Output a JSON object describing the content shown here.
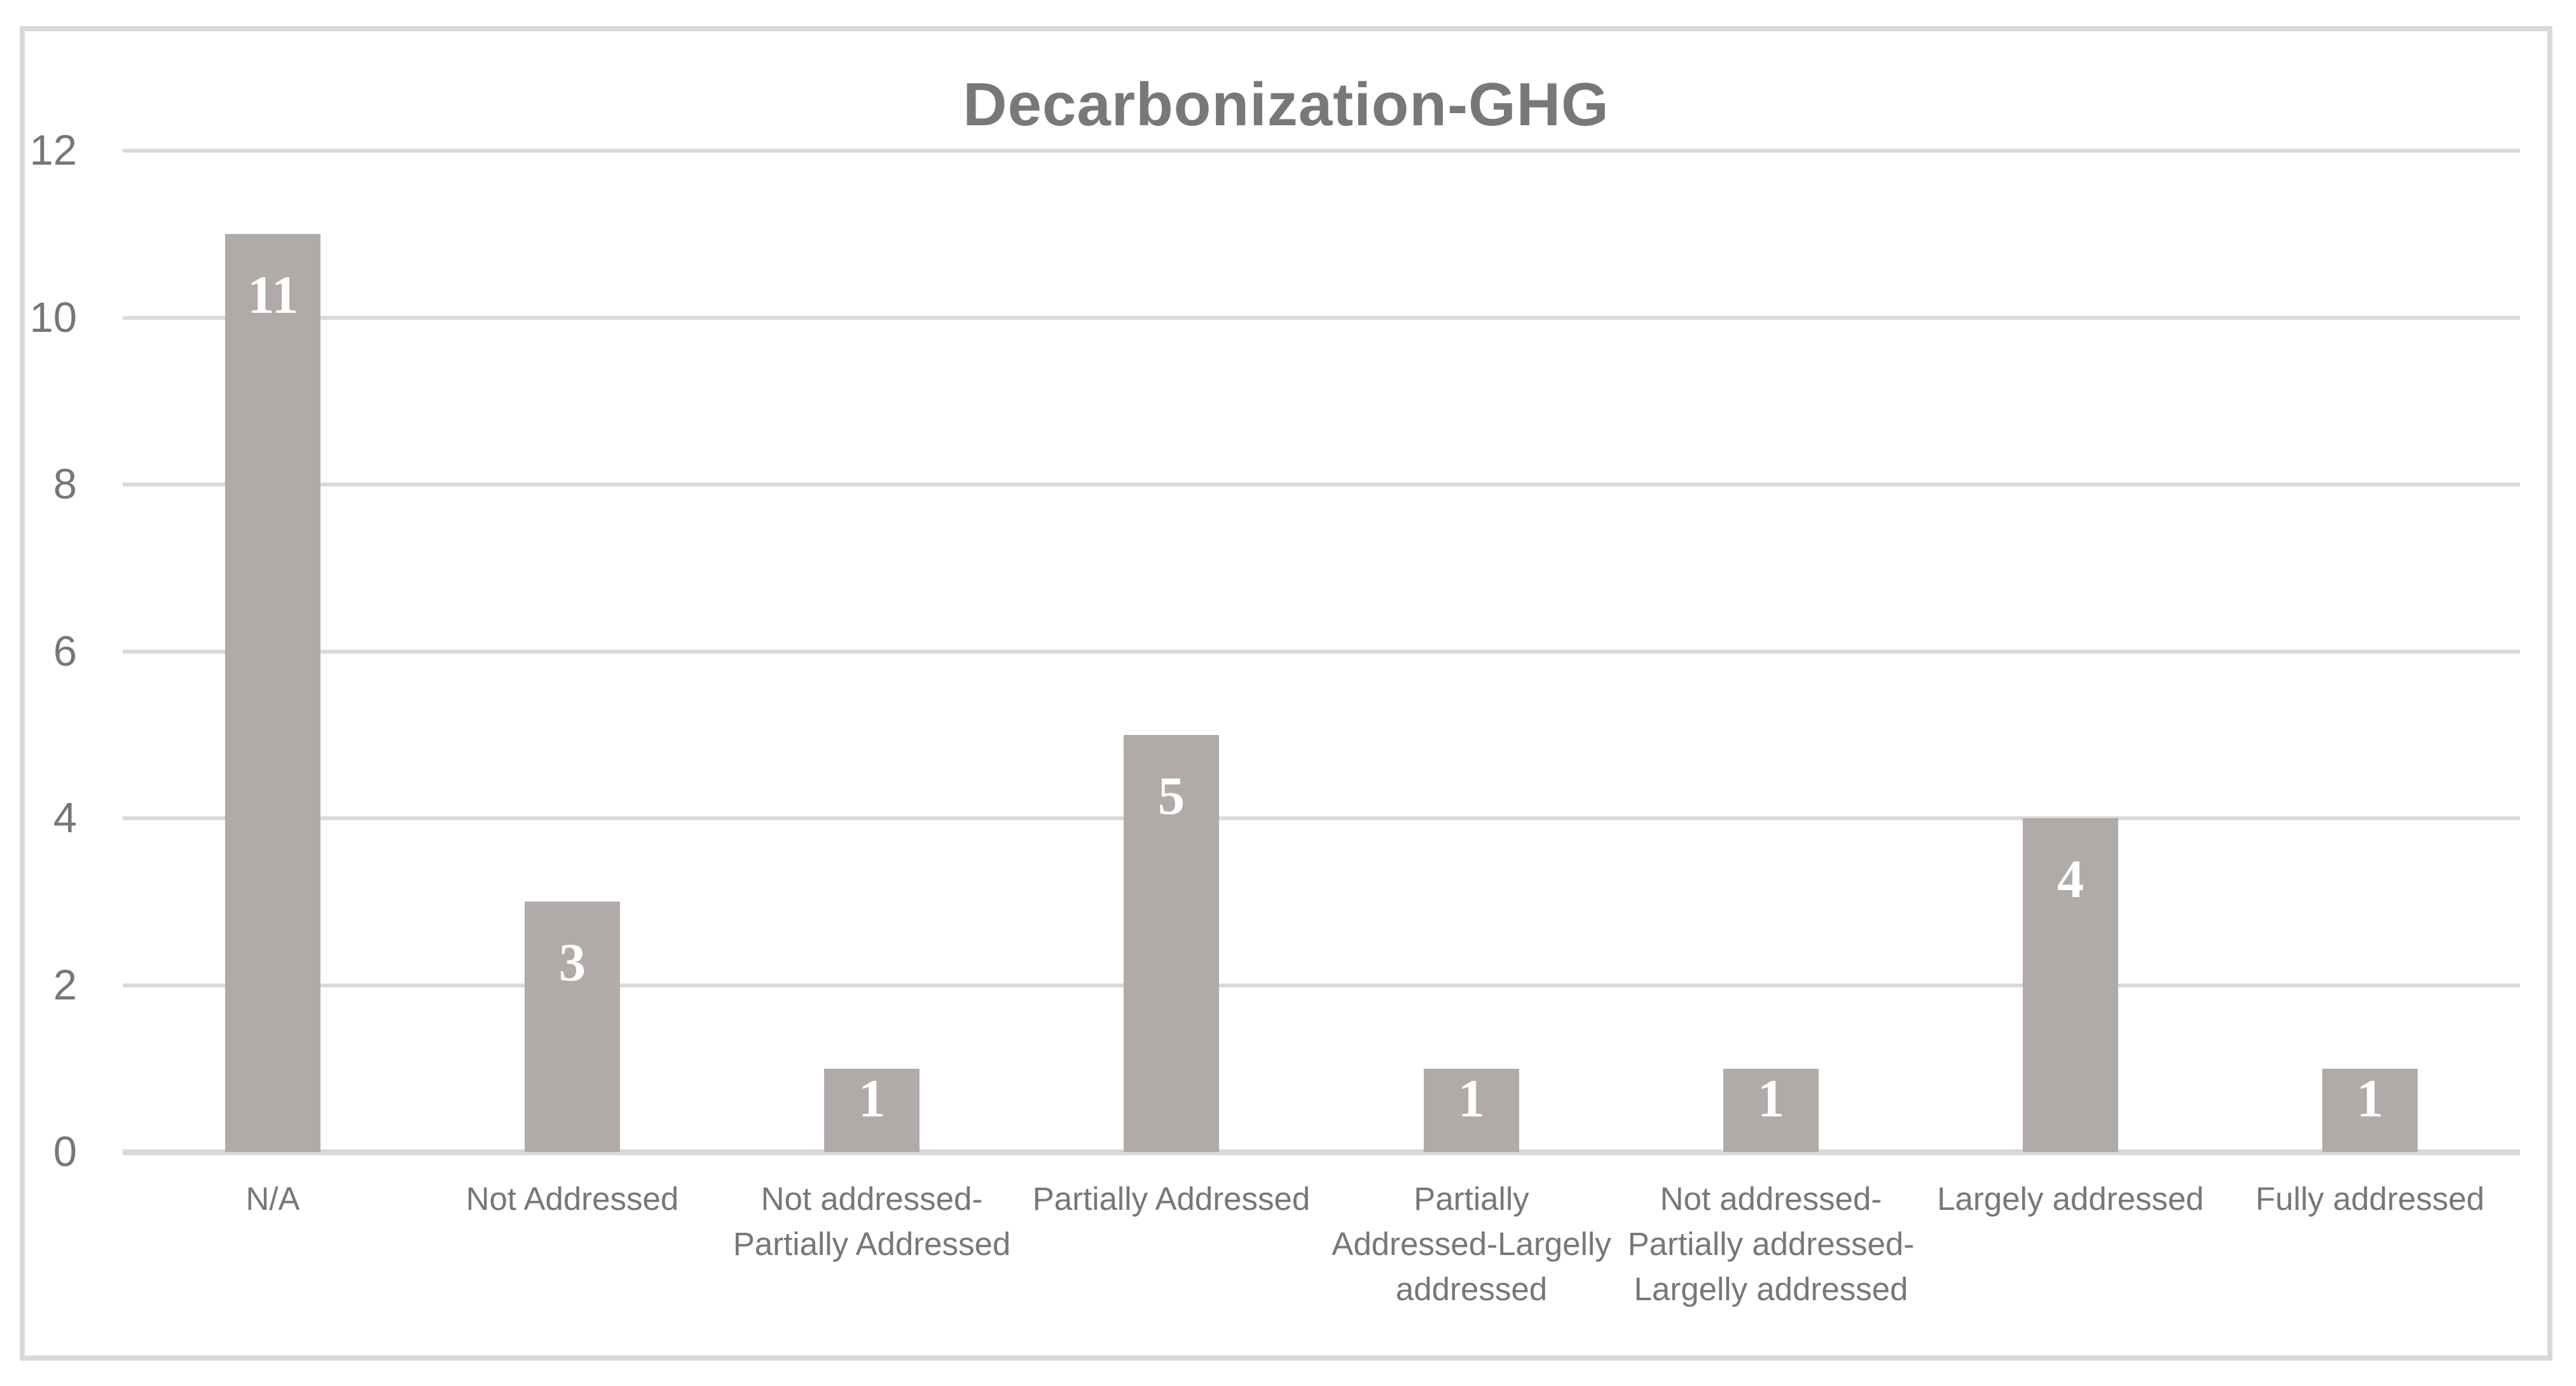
{
  "chart_data": {
    "type": "bar",
    "title": "Decarbonization-GHG",
    "categories": [
      "N/A",
      "Not Addressed",
      "Not addressed-Partially Addressed",
      "Partially Addressed",
      "Partially Addressed-Largelly addressed",
      "Not addressed-Partially addressed-Largelly addressed",
      "Largely addressed",
      "Fully addressed"
    ],
    "category_lines": [
      [
        "N/A"
      ],
      [
        "Not Addressed"
      ],
      [
        "Not addressed-",
        "Partially Addressed"
      ],
      [
        "Partially Addressed"
      ],
      [
        "Partially",
        "Addressed-Largelly",
        "addressed"
      ],
      [
        "Not addressed-",
        "Partially addressed-",
        "Largelly addressed"
      ],
      [
        "Largely addressed"
      ],
      [
        "Fully addressed"
      ]
    ],
    "values": [
      11,
      3,
      1,
      5,
      1,
      1,
      4,
      1
    ],
    "data_labels": [
      "11",
      "3",
      "1",
      "5",
      "1",
      "1",
      "4",
      "1"
    ],
    "xlabel": "",
    "ylabel": "",
    "ylim": [
      0,
      12
    ],
    "yticks": [
      0,
      2,
      4,
      6,
      8,
      10,
      12
    ],
    "grid": true,
    "legend": false,
    "colors": {
      "bar_fill": "#b0aaa8",
      "gridline": "#d9d9d9",
      "axis_line": "#d8d6d6",
      "frame_border": "#d9d9d9",
      "title_text": "#7a7777",
      "tick_text": "#7a7676",
      "data_label_text": "#ffffff",
      "background": "#ffffff"
    }
  }
}
